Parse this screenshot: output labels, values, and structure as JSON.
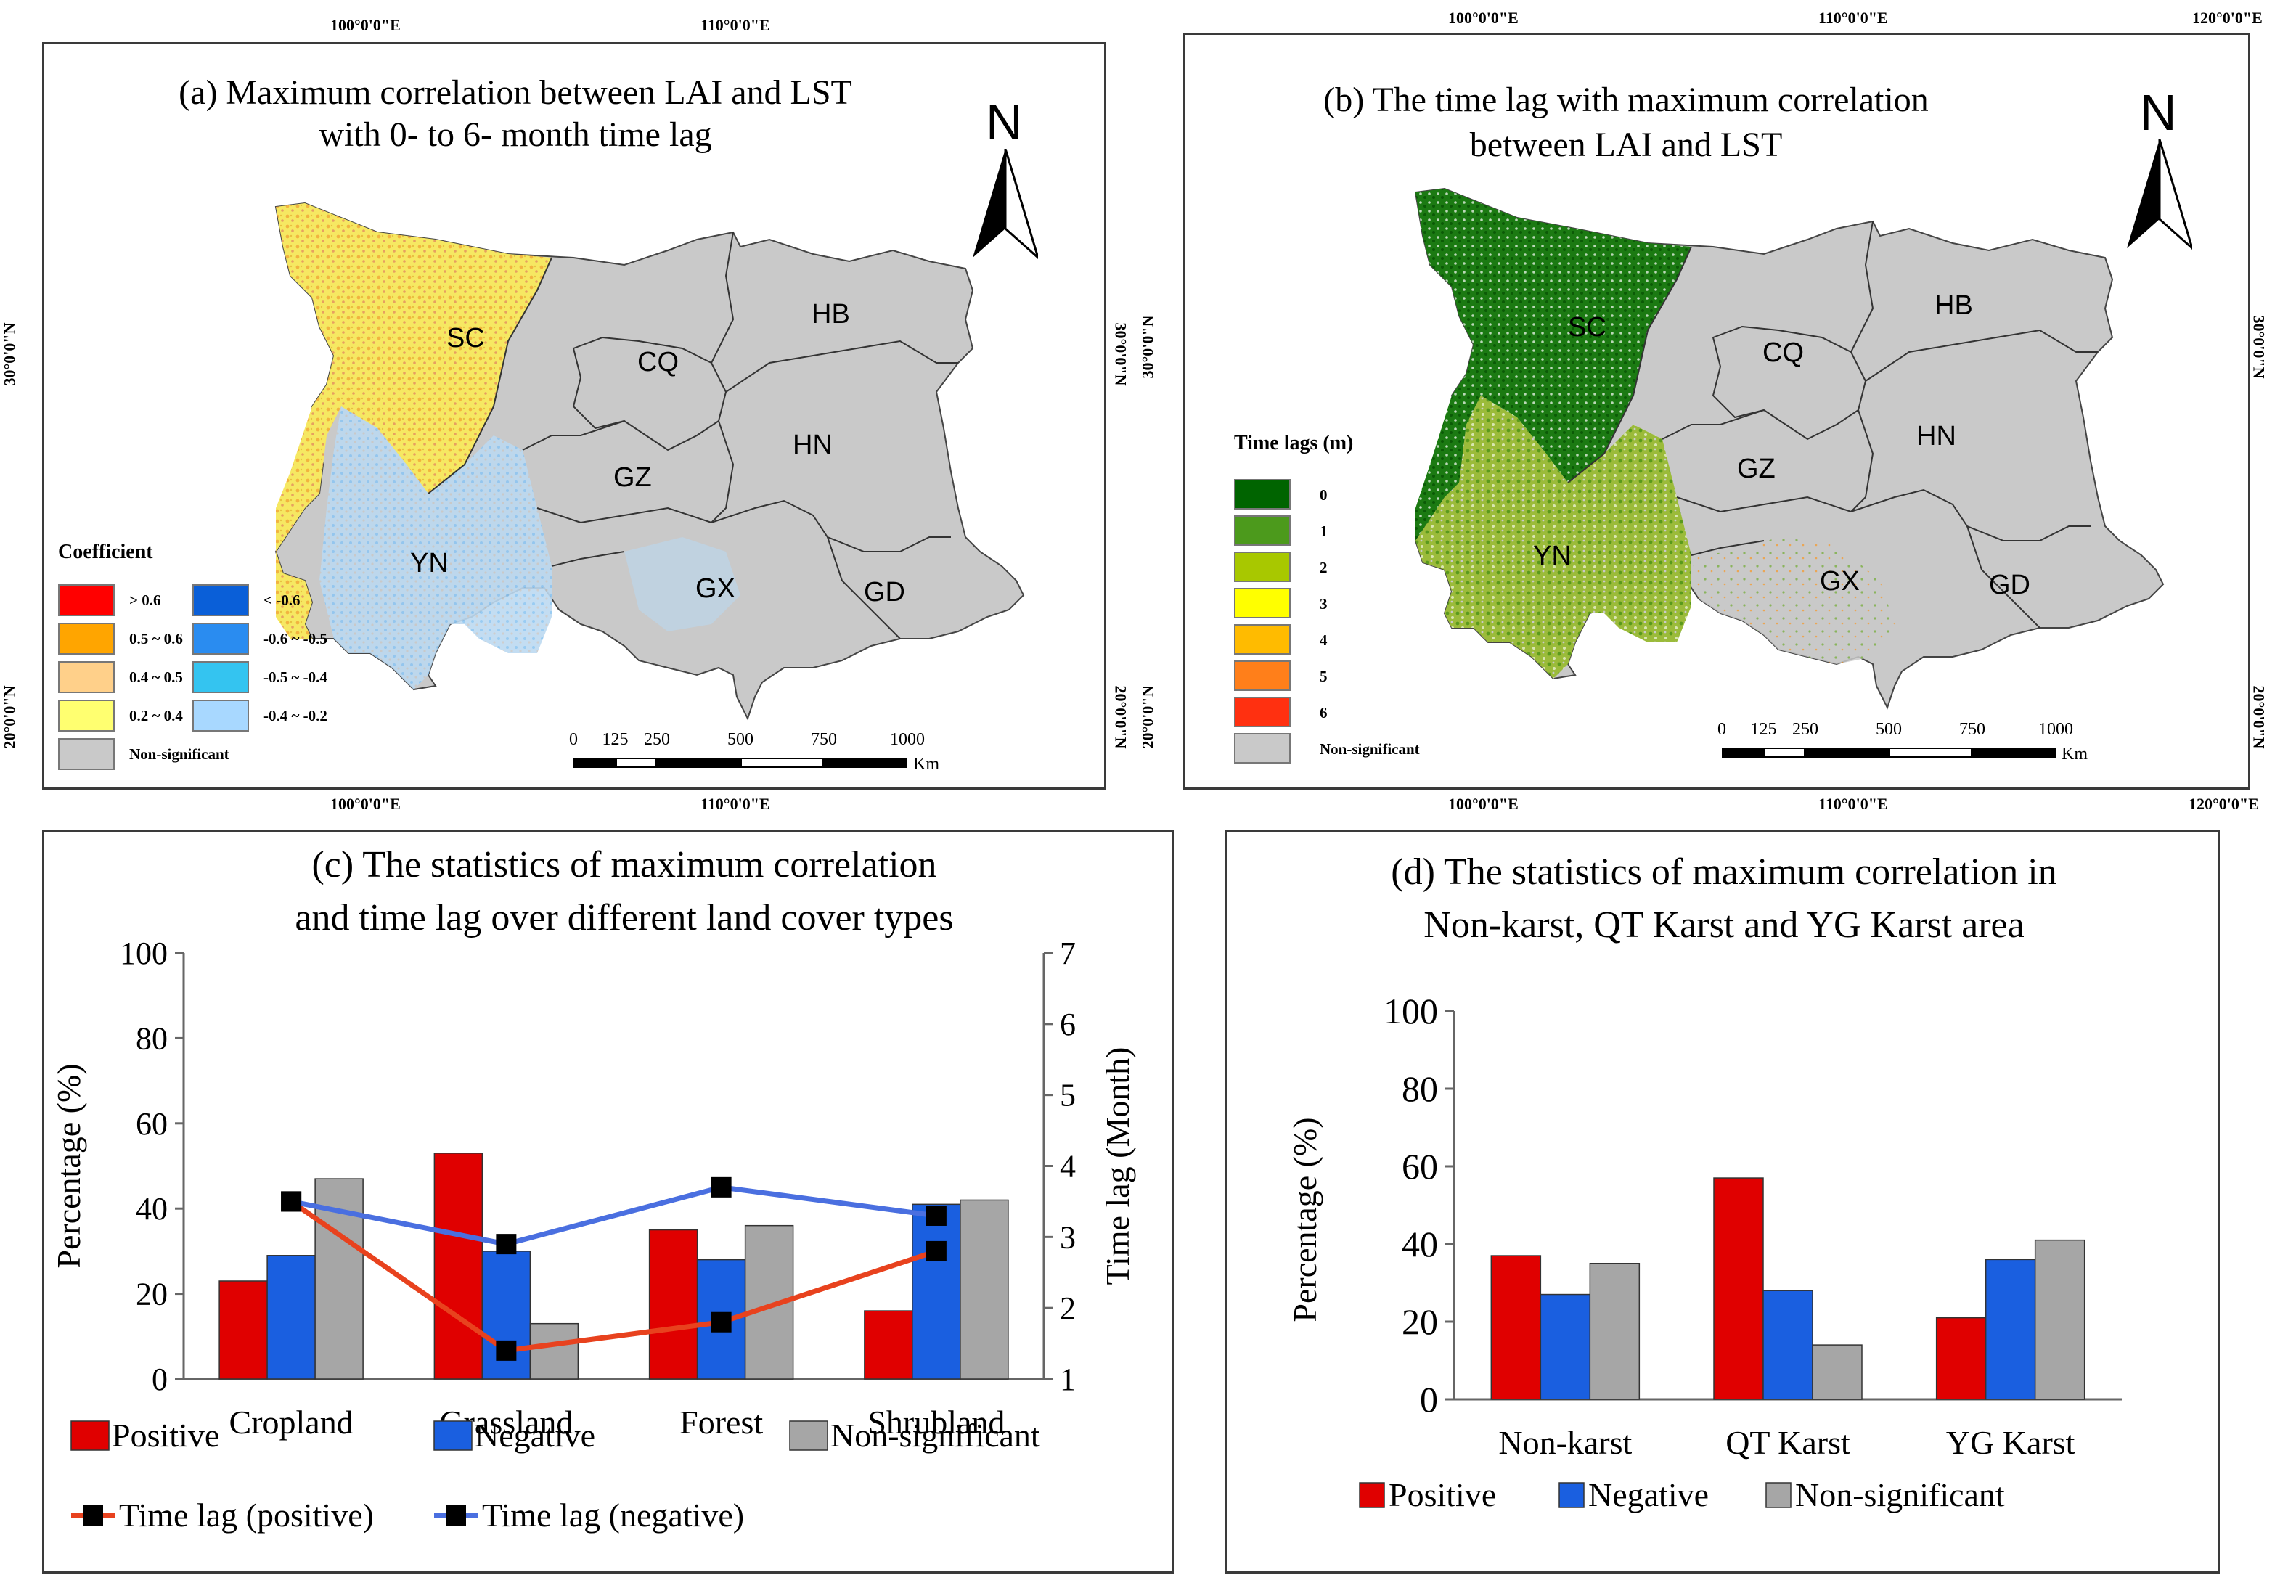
{
  "colors": {
    "gray": "#c9c9c9",
    "positive": "#e00000",
    "negative": "#1a5fe0",
    "nonsig": "#a6a6a6",
    "lag_positive": "#e8421e",
    "lag_negative": "#4a6fe0"
  },
  "map_a": {
    "title_line1": "(a) Maximum correlation between LAI and LST",
    "title_line2": "with 0- to 6- month time lag",
    "north": "N",
    "coords_top": [
      "100°0'0\"E",
      "110°0'0\"E"
    ],
    "coords_bottom": [
      "100°0'0\"E",
      "110°0'0\"E"
    ],
    "coords_left": [
      "30°0'0\"N",
      "20°0'0\"N"
    ],
    "coords_right": [
      "30°0'0\"N",
      "20°0'0\"N"
    ],
    "provinces": [
      "SC",
      "CQ",
      "HB",
      "GZ",
      "HN",
      "YN",
      "GX",
      "GD"
    ],
    "legend_title": "Coefficient",
    "legend": [
      {
        "label": "> 0.6",
        "color": "#ff0000"
      },
      {
        "label": "0.5 ~ 0.6",
        "color": "#ffa500"
      },
      {
        "label": "0.4 ~ 0.5",
        "color": "#ffd08a"
      },
      {
        "label": "0.2 ~ 0.4",
        "color": "#ffff70"
      },
      {
        "label": "< -0.6",
        "color": "#0a5fd8"
      },
      {
        "label": "-0.6 ~ -0.5",
        "color": "#2a8cf0"
      },
      {
        "label": "-0.5 ~ -0.4",
        "color": "#34c4f0"
      },
      {
        "label": "-0.4 ~ -0.2",
        "color": "#a8d8ff"
      },
      {
        "label": "Non-significant",
        "color": "#c9c9c9"
      }
    ],
    "scale": [
      "0",
      "125",
      "250",
      "500",
      "750",
      "1000"
    ],
    "scale_unit": "Km"
  },
  "map_b": {
    "title_line1": "(b) The time lag with maximum correlation",
    "title_line2": "between LAI and LST",
    "north": "N",
    "coords_top": [
      "100°0'0\"E",
      "110°0'0\"E",
      "120°0'0\"E"
    ],
    "coords_bottom": [
      "100°0'0\"E",
      "110°0'0\"E",
      "120°0'0\"E"
    ],
    "coords_left": [
      "30°0'0\"N",
      "20°0'0\"N"
    ],
    "coords_right": [
      "30°0'0\"N",
      "20°0'0\"N"
    ],
    "provinces": [
      "SC",
      "CQ",
      "HB",
      "GZ",
      "HN",
      "YN",
      "GX",
      "GD"
    ],
    "legend_title": "Time lags (m)",
    "legend": [
      {
        "label": "0",
        "color": "#006400"
      },
      {
        "label": "1",
        "color": "#4c9a1c"
      },
      {
        "label": "2",
        "color": "#a8c800"
      },
      {
        "label": "3",
        "color": "#ffff00"
      },
      {
        "label": "4",
        "color": "#ffbb00"
      },
      {
        "label": "5",
        "color": "#ff7f1a"
      },
      {
        "label": "6",
        "color": "#ff3010"
      },
      {
        "label": "Non-significant",
        "color": "#c9c9c9"
      }
    ],
    "scale": [
      "0",
      "125",
      "250",
      "500",
      "750",
      "1000"
    ],
    "scale_unit": "Km"
  },
  "chart_data": [
    {
      "type": "bar",
      "title": "(c) The statistics of maximum correlation and time lag over different land cover types",
      "title_line1": "(c) The statistics of maximum correlation",
      "title_line2": "and time lag over different land cover types",
      "categories": [
        "Cropland",
        "Grassland",
        "Forest",
        "Shrubland"
      ],
      "series": [
        {
          "name": "Positive",
          "values": [
            23,
            53,
            35,
            16
          ]
        },
        {
          "name": "Negative",
          "values": [
            29,
            30,
            28,
            41
          ]
        },
        {
          "name": "Non-significant",
          "values": [
            47,
            13,
            36,
            42
          ]
        }
      ],
      "line_series": [
        {
          "name": "Time lag (positive)",
          "values": [
            3.5,
            1.4,
            1.8,
            2.8
          ]
        },
        {
          "name": "Time lag (negative)",
          "values": [
            3.5,
            2.9,
            3.7,
            3.3
          ]
        }
      ],
      "ylabel": "Percentage (%)",
      "y2label": "Time lag (Month)",
      "ylim": [
        0,
        100
      ],
      "y2lim": [
        1,
        7
      ],
      "yticks": [
        "0",
        "20",
        "40",
        "60",
        "80",
        "100"
      ],
      "y2ticks": [
        "1",
        "2",
        "3",
        "4",
        "5",
        "6",
        "7"
      ],
      "legend": [
        "Positive",
        "Negative",
        "Non-significant",
        "Time lag (positive)",
        "Time lag (negative)"
      ]
    },
    {
      "type": "bar",
      "title": "(d) The statistics of maximum correlation in Non-karst, QT Karst and YG Karst area",
      "title_line1": "(d) The statistics of maximum correlation in",
      "title_line2": "Non-karst, QT Karst and YG Karst area",
      "categories": [
        "Non-karst",
        "QT Karst",
        "YG Karst"
      ],
      "series": [
        {
          "name": "Positive",
          "values": [
            37,
            57,
            21
          ]
        },
        {
          "name": "Negative",
          "values": [
            27,
            28,
            36
          ]
        },
        {
          "name": "Non-significant",
          "values": [
            35,
            14,
            41
          ]
        }
      ],
      "ylabel": "Percentage (%)",
      "ylim": [
        0,
        100
      ],
      "yticks": [
        "0",
        "20",
        "40",
        "60",
        "80",
        "100"
      ],
      "legend": [
        "Positive",
        "Negative",
        "Non-significant"
      ]
    }
  ]
}
